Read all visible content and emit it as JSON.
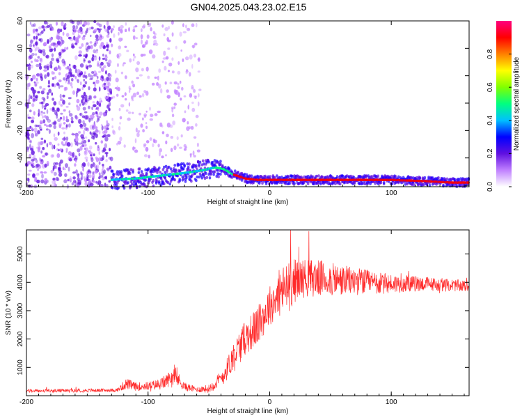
{
  "title": "GN04.2025.043.23.02.E15",
  "chart_data": [
    {
      "type": "heatmap",
      "xlabel": "Height of straight line (km)",
      "ylabel": "Frequency (Hz)",
      "xlim": [
        -200,
        164
      ],
      "ylim": [
        -61,
        60
      ],
      "xticks": [
        "-200",
        "-100",
        "0",
        "100"
      ],
      "xtick_values": [
        -200,
        -100,
        0,
        100
      ],
      "yticks": [
        "-60",
        "-40",
        "-20",
        "0",
        "20",
        "40",
        "60"
      ],
      "ytick_values": [
        -60,
        -40,
        -20,
        0,
        20,
        40,
        60
      ],
      "ridge": {
        "description_of_values": "frequency of peak spectral amplitude vs height",
        "x": [
          -130,
          -110,
          -90,
          -70,
          -55,
          -45,
          -38,
          -30,
          -20,
          -10,
          0,
          20,
          50,
          100,
          130,
          150,
          164
        ],
        "y": [
          -56,
          -55,
          -53,
          -51,
          -49,
          -47,
          -48,
          -52,
          -55,
          -56,
          -56,
          -56,
          -56,
          -56,
          -57,
          -58,
          -58
        ]
      },
      "noise_regions": [
        {
          "x_range": [
            -200,
            -130
          ],
          "y_range": [
            -61,
            60
          ],
          "density": "high"
        },
        {
          "x_range": [
            -130,
            -57
          ],
          "y_range": [
            -40,
            60
          ],
          "density": "sparse"
        }
      ],
      "grid": false
    },
    {
      "type": "colorbar",
      "label": "Normalized spectral amplitude",
      "range": [
        0,
        1
      ],
      "ticks": [
        "0.0",
        "0.2",
        "0.4",
        "0.6",
        "0.8"
      ],
      "tick_values": [
        0,
        0.2,
        0.4,
        0.6,
        0.8
      ],
      "colormap": [
        "#ffffff",
        "#c080ff",
        "#6010e0",
        "#0000ff",
        "#00c0ff",
        "#00ff80",
        "#80ff00",
        "#ffff00",
        "#ff8000",
        "#ff0000",
        "#ff0080"
      ]
    },
    {
      "type": "line",
      "xlabel": "Height of straight line (km)",
      "ylabel": "SNR (10 * v/v)",
      "xlim": [
        -200,
        164
      ],
      "ylim": [
        0,
        5850
      ],
      "xticks": [
        "-200",
        "-100",
        "0",
        "100"
      ],
      "xtick_values": [
        -200,
        -100,
        0,
        100
      ],
      "yticks": [
        "1000",
        "2000",
        "3000",
        "4000",
        "5000"
      ],
      "ytick_values": [
        1000,
        2000,
        3000,
        4000,
        5000
      ],
      "series": [
        {
          "color": "#ff2a2a",
          "x": [
            -200,
            -180,
            -160,
            -140,
            -125,
            -118,
            -110,
            -100,
            -90,
            -85,
            -80,
            -75,
            -70,
            -60,
            -50,
            -40,
            -35,
            -30,
            -25,
            -20,
            -15,
            -10,
            -5,
            0,
            5,
            10,
            15,
            20,
            25,
            30,
            40,
            50,
            60,
            70,
            80,
            90,
            100,
            110,
            120,
            130,
            140,
            150,
            164
          ],
          "y": [
            170,
            170,
            180,
            190,
            200,
            420,
            320,
            350,
            400,
            520,
            680,
            560,
            320,
            220,
            250,
            600,
            950,
            1400,
            1700,
            2050,
            2250,
            2450,
            2800,
            3200,
            3400,
            3700,
            3800,
            4050,
            4150,
            4150,
            4150,
            4100,
            4050,
            4050,
            4000,
            3950,
            3950,
            3950,
            3950,
            3950,
            3900,
            3900,
            3850
          ],
          "noise_amplitude": [
            60,
            60,
            60,
            60,
            60,
            200,
            150,
            150,
            200,
            250,
            300,
            250,
            150,
            100,
            150,
            300,
            400,
            500,
            600,
            600,
            650,
            700,
            700,
            700,
            800,
            900,
            900,
            800,
            700,
            700,
            650,
            600,
            550,
            500,
            450,
            400,
            350,
            300,
            280,
            250,
            230,
            220,
            200
          ]
        }
      ],
      "grid": false
    }
  ]
}
